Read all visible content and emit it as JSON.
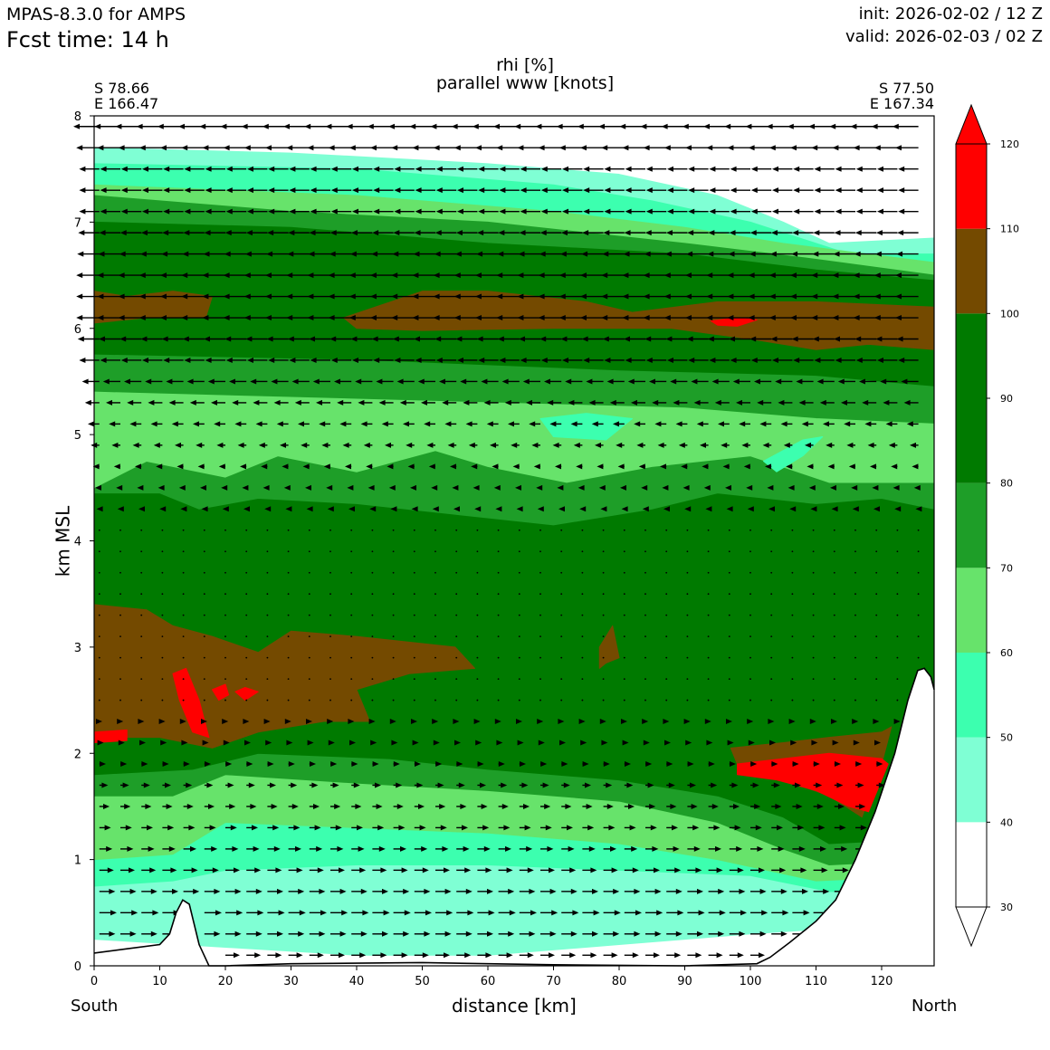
{
  "header": {
    "model": "MPAS-8.3.0 for AMPS",
    "fcst": "Fcst time:   14 h",
    "init": "init: 2026-02-02 / 12 Z",
    "valid": "valid: 2026-02-03 / 02 Z"
  },
  "title_line1": "rhi [%]",
  "title_line2": "parallel www [knots]",
  "start_point": {
    "lat": "S 78.66",
    "lon": "E 166.47"
  },
  "end_point": {
    "lat": "S 77.50",
    "lon": "E 167.34"
  },
  "direction_left": "South",
  "direction_right": "North",
  "colors": {
    "c40": "#7fffd4",
    "c50": "#3cffaf",
    "c60": "#67e36b",
    "c70": "#1e9e28",
    "c80": "#007a00",
    "c100": "#744a00",
    "c110": "#ff0000",
    "terrain_line": "#000000"
  },
  "chart_data": {
    "type": "heatmap",
    "xlabel": "distance [km]",
    "ylabel": "km MSL",
    "xlim": [
      0,
      128
    ],
    "ylim": [
      0,
      8
    ],
    "xticks": [
      "0",
      "10",
      "20",
      "30",
      "40",
      "50",
      "60",
      "70",
      "80",
      "90",
      "100",
      "110",
      "120"
    ],
    "yticks": [
      "0",
      "1",
      "2",
      "3",
      "4",
      "5",
      "6",
      "7",
      "8"
    ],
    "colorbar": {
      "levels": [
        30,
        40,
        50,
        60,
        70,
        80,
        90,
        100,
        110,
        120
      ],
      "labels": [
        "30",
        "40",
        "50",
        "60",
        "70",
        "80",
        "90",
        "100",
        "110",
        "120"
      ],
      "bands": [
        {
          "from": 30,
          "to": 40,
          "color": "#ffffff"
        },
        {
          "from": 40,
          "to": 50,
          "color": "#7fffd4"
        },
        {
          "from": 50,
          "to": 60,
          "color": "#3cffaf"
        },
        {
          "from": 60,
          "to": 70,
          "color": "#67e36b"
        },
        {
          "from": 70,
          "to": 80,
          "color": "#1e9e28"
        },
        {
          "from": 80,
          "to": 100,
          "color": "#007a00"
        },
        {
          "from": 100,
          "to": 110,
          "color": "#744a00"
        },
        {
          "from": 110,
          "to": 120,
          "color": "#ff0000"
        }
      ],
      "extend": "both"
    },
    "terrain_km": [
      [
        0,
        0.12
      ],
      [
        5,
        0.16
      ],
      [
        10,
        0.2
      ],
      [
        11.5,
        0.3
      ],
      [
        12.5,
        0.5
      ],
      [
        13.5,
        0.62
      ],
      [
        14.5,
        0.58
      ],
      [
        16,
        0.2
      ],
      [
        17.5,
        0.0
      ],
      [
        20,
        0.0
      ],
      [
        30,
        0.02
      ],
      [
        50,
        0.03
      ],
      [
        70,
        0.01
      ],
      [
        90,
        0.0
      ],
      [
        101,
        0.02
      ],
      [
        103,
        0.08
      ],
      [
        106,
        0.22
      ],
      [
        110,
        0.42
      ],
      [
        113,
        0.62
      ],
      [
        116,
        1.0
      ],
      [
        119,
        1.45
      ],
      [
        122,
        2.0
      ],
      [
        124,
        2.5
      ],
      [
        125.5,
        2.78
      ],
      [
        126.5,
        2.8
      ],
      [
        127.5,
        2.72
      ],
      [
        128,
        2.6
      ]
    ],
    "rhi_layers": [
      {
        "level": 40,
        "top": [
          [
            0,
            7.7
          ],
          [
            30,
            7.65
          ],
          [
            60,
            7.55
          ],
          [
            80,
            7.45
          ],
          [
            95,
            7.25
          ],
          [
            105,
            7.0
          ],
          [
            112,
            6.8
          ],
          [
            128,
            6.85
          ]
        ],
        "bottom": [
          [
            0,
            0.25
          ],
          [
            40,
            0.1
          ],
          [
            60,
            0.1
          ],
          [
            80,
            0.2
          ],
          [
            100,
            0.3
          ],
          [
            112,
            0.35
          ],
          [
            128,
            0.4
          ]
        ]
      },
      {
        "level": 50,
        "top": [
          [
            0,
            7.55
          ],
          [
            40,
            7.5
          ],
          [
            70,
            7.35
          ],
          [
            85,
            7.2
          ],
          [
            100,
            7.0
          ],
          [
            115,
            6.7
          ],
          [
            128,
            6.7
          ]
        ],
        "bottom": [
          [
            0,
            0.75
          ],
          [
            12,
            0.8
          ],
          [
            20,
            0.9
          ],
          [
            40,
            0.95
          ],
          [
            60,
            0.95
          ],
          [
            80,
            0.9
          ],
          [
            100,
            0.85
          ],
          [
            112,
            0.7
          ],
          [
            128,
            0.7
          ]
        ]
      },
      {
        "level": 60,
        "top": [
          [
            0,
            7.35
          ],
          [
            40,
            7.25
          ],
          [
            70,
            7.1
          ],
          [
            90,
            6.95
          ],
          [
            105,
            6.8
          ],
          [
            128,
            6.62
          ]
        ],
        "bottom": [
          [
            0,
            1.0
          ],
          [
            12,
            1.05
          ],
          [
            20,
            1.35
          ],
          [
            40,
            1.3
          ],
          [
            60,
            1.25
          ],
          [
            80,
            1.15
          ],
          [
            95,
            1.0
          ],
          [
            110,
            0.8
          ],
          [
            128,
            0.85
          ]
        ]
      },
      {
        "level": 70,
        "top": [
          [
            0,
            7.25
          ],
          [
            30,
            7.1
          ],
          [
            60,
            7.0
          ],
          [
            90,
            6.8
          ],
          [
            110,
            6.65
          ],
          [
            128,
            6.5
          ]
        ],
        "bottom": [
          [
            0,
            1.6
          ],
          [
            12,
            1.6
          ],
          [
            20,
            1.8
          ],
          [
            40,
            1.72
          ],
          [
            60,
            1.65
          ],
          [
            80,
            1.55
          ],
          [
            95,
            1.35
          ],
          [
            105,
            1.1
          ],
          [
            112,
            0.95
          ],
          [
            128,
            1.0
          ]
        ]
      },
      {
        "level": 80,
        "top": [
          [
            0,
            7.0
          ],
          [
            30,
            6.95
          ],
          [
            60,
            6.8
          ],
          [
            90,
            6.7
          ],
          [
            110,
            6.55
          ],
          [
            128,
            6.45
          ]
        ],
        "bottom": [
          [
            0,
            1.8
          ],
          [
            15,
            1.85
          ],
          [
            25,
            2.0
          ],
          [
            45,
            1.95
          ],
          [
            60,
            1.85
          ],
          [
            80,
            1.75
          ],
          [
            95,
            1.6
          ],
          [
            105,
            1.4
          ],
          [
            112,
            1.15
          ],
          [
            128,
            1.2
          ]
        ]
      },
      {
        "level": 70,
        "top": [
          [
            0,
            5.75
          ],
          [
            40,
            5.7
          ],
          [
            80,
            5.6
          ],
          [
            110,
            5.55
          ],
          [
            128,
            5.45
          ]
        ],
        "bottom": [
          [
            0,
            4.45
          ],
          [
            10,
            4.45
          ],
          [
            16,
            4.3
          ],
          [
            25,
            4.4
          ],
          [
            40,
            4.35
          ],
          [
            55,
            4.25
          ],
          [
            70,
            4.15
          ],
          [
            85,
            4.3
          ],
          [
            95,
            4.45
          ],
          [
            110,
            4.35
          ],
          [
            120,
            4.4
          ],
          [
            128,
            4.3
          ]
        ]
      },
      {
        "level": 60,
        "top": [
          [
            0,
            5.4
          ],
          [
            30,
            5.35
          ],
          [
            60,
            5.3
          ],
          [
            90,
            5.25
          ],
          [
            110,
            5.15
          ],
          [
            128,
            5.1
          ]
        ],
        "bottom": [
          [
            0,
            4.5
          ],
          [
            8,
            4.75
          ],
          [
            20,
            4.6
          ],
          [
            28,
            4.8
          ],
          [
            40,
            4.65
          ],
          [
            52,
            4.85
          ],
          [
            60,
            4.7
          ],
          [
            72,
            4.55
          ],
          [
            85,
            4.7
          ],
          [
            100,
            4.8
          ],
          [
            112,
            4.55
          ],
          [
            128,
            4.55
          ]
        ]
      },
      {
        "level": 50,
        "top": [
          [
            68,
            5.15
          ],
          [
            75,
            5.2
          ],
          [
            82,
            5.15
          ],
          [
            78,
            4.95
          ],
          [
            70,
            4.98
          ]
        ],
        "bottom": null
      },
      {
        "level": 50,
        "top": [
          [
            102,
            4.75
          ],
          [
            108,
            4.95
          ],
          [
            111,
            4.98
          ],
          [
            108,
            4.8
          ],
          [
            104,
            4.65
          ]
        ],
        "bottom": null
      },
      {
        "level": 100,
        "top": [
          [
            0,
            6.35
          ],
          [
            5,
            6.3
          ],
          [
            12,
            6.35
          ],
          [
            18,
            6.3
          ],
          [
            17,
            6.1
          ],
          [
            8,
            6.1
          ],
          [
            0,
            6.05
          ]
        ],
        "bottom": null
      },
      {
        "level": 100,
        "top": [
          [
            38,
            6.1
          ],
          [
            50,
            6.35
          ],
          [
            60,
            6.35
          ],
          [
            75,
            6.25
          ],
          [
            82,
            6.15
          ],
          [
            95,
            6.25
          ],
          [
            110,
            6.25
          ],
          [
            128,
            6.2
          ],
          [
            128,
            5.8
          ],
          [
            118,
            5.85
          ],
          [
            110,
            5.8
          ],
          [
            100,
            5.9
          ],
          [
            88,
            6.0
          ],
          [
            70,
            6.0
          ],
          [
            50,
            5.98
          ],
          [
            40,
            6.0
          ]
        ],
        "bottom": null
      },
      {
        "level": 110,
        "top": [
          [
            94,
            6.07
          ],
          [
            98,
            6.1
          ],
          [
            101,
            6.08
          ],
          [
            98,
            6.02
          ],
          [
            95,
            6.03
          ]
        ],
        "bottom": null
      },
      {
        "level": 100,
        "top": [
          [
            0,
            3.4
          ],
          [
            8,
            3.35
          ],
          [
            12,
            3.2
          ],
          [
            18,
            3.1
          ],
          [
            25,
            2.95
          ],
          [
            30,
            3.15
          ],
          [
            40,
            3.1
          ],
          [
            55,
            3.0
          ],
          [
            58,
            2.8
          ],
          [
            48,
            2.75
          ],
          [
            40,
            2.6
          ],
          [
            42,
            2.3
          ],
          [
            35,
            2.3
          ],
          [
            25,
            2.2
          ],
          [
            18,
            2.05
          ],
          [
            10,
            2.15
          ],
          [
            0,
            2.15
          ]
        ],
        "bottom": null
      },
      {
        "level": 100,
        "top": [
          [
            77,
            3.0
          ],
          [
            79,
            3.2
          ],
          [
            80,
            2.9
          ],
          [
            78,
            2.85
          ],
          [
            77,
            2.8
          ]
        ],
        "bottom": null
      },
      {
        "level": 110,
        "top": [
          [
            12,
            2.75
          ],
          [
            14,
            2.8
          ],
          [
            16,
            2.5
          ],
          [
            17.5,
            2.15
          ],
          [
            15,
            2.2
          ],
          [
            13,
            2.5
          ]
        ],
        "bottom": null
      },
      {
        "level": 110,
        "top": [
          [
            18,
            2.6
          ],
          [
            20,
            2.65
          ],
          [
            20.5,
            2.55
          ],
          [
            19,
            2.5
          ]
        ],
        "bottom": null
      },
      {
        "level": 110,
        "top": [
          [
            21.5,
            2.58
          ],
          [
            23,
            2.62
          ],
          [
            25,
            2.58
          ],
          [
            23,
            2.5
          ]
        ],
        "bottom": null
      },
      {
        "level": 110,
        "top": [
          [
            0,
            2.2
          ],
          [
            5,
            2.22
          ],
          [
            5,
            2.12
          ],
          [
            0,
            2.1
          ]
        ],
        "bottom": null
      },
      {
        "level": 100,
        "top": [
          [
            97,
            2.05
          ],
          [
            105,
            2.1
          ],
          [
            112,
            2.15
          ],
          [
            120,
            2.2
          ],
          [
            121.5,
            2.25
          ],
          [
            120,
            1.9
          ],
          [
            117,
            1.4
          ],
          [
            112,
            1.6
          ],
          [
            105,
            1.75
          ],
          [
            98,
            1.9
          ]
        ],
        "bottom": null
      },
      {
        "level": 110,
        "top": [
          [
            98,
            1.9
          ],
          [
            105,
            1.95
          ],
          [
            112,
            2.0
          ],
          [
            120,
            1.95
          ],
          [
            121,
            1.9
          ],
          [
            118,
            1.45
          ],
          [
            115,
            1.5
          ],
          [
            110,
            1.65
          ],
          [
            104,
            1.75
          ],
          [
            98,
            1.8
          ]
        ],
        "bottom": null
      }
    ],
    "wind_vector_rows_km": [
      7.9,
      7.7,
      7.5,
      7.3,
      7.1,
      6.9,
      6.7,
      6.5,
      6.3,
      6.1,
      5.9,
      5.7,
      5.5,
      5.3,
      5.1,
      4.9,
      4.7,
      4.5,
      4.3,
      4.1,
      3.9,
      3.7,
      3.5,
      3.3,
      3.1,
      2.9,
      2.7,
      2.5,
      2.3,
      2.1,
      1.9,
      1.7,
      1.5,
      1.3,
      1.1,
      0.9,
      0.7,
      0.5,
      0.3,
      0.1
    ],
    "wind_vector_columns_km": [
      0.8,
      4.0,
      7.2,
      10.4,
      13.6,
      16.8,
      20.0,
      23.2,
      26.4,
      29.6,
      32.8,
      36.0,
      39.2,
      42.4,
      45.6,
      48.8,
      52.0,
      55.2,
      58.4,
      61.6,
      64.8,
      68.0,
      71.2,
      74.4,
      77.6,
      80.8,
      84.0,
      87.2,
      90.4,
      93.6,
      96.8,
      100.0,
      103.2,
      106.4,
      109.6,
      112.8,
      116.0,
      119.2,
      122.4,
      125.6
    ],
    "wind_speed_profile_knots": [
      [
        7.9,
        -18
      ],
      [
        7.5,
        -14
      ],
      [
        7.1,
        -14
      ],
      [
        6.5,
        -16
      ],
      [
        6.1,
        -16
      ],
      [
        5.7,
        -14
      ],
      [
        5.3,
        -10
      ],
      [
        4.9,
        -6
      ],
      [
        4.5,
        -3
      ],
      [
        4.1,
        -1
      ],
      [
        3.5,
        0
      ],
      [
        2.5,
        1
      ],
      [
        2.1,
        3
      ],
      [
        1.7,
        6
      ],
      [
        1.3,
        8
      ],
      [
        0.9,
        10
      ],
      [
        0.5,
        12
      ],
      [
        0.1,
        10
      ]
    ]
  }
}
